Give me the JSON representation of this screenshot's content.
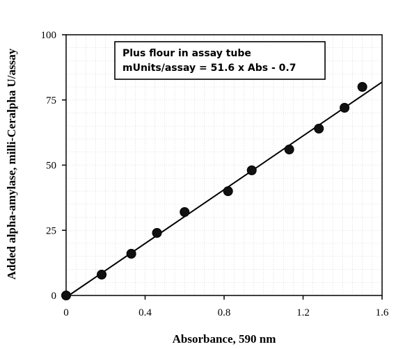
{
  "chart_data": {
    "type": "scatter",
    "xlabel": "Absorbance,   590 nm",
    "ylabel": "Added alpha-amylase, milli-Ceralpha U/assay",
    "xlim": [
      0,
      1.6
    ],
    "ylim": [
      0,
      100
    ],
    "x_ticks": [
      "0",
      "0.4",
      "0.8",
      "1.2",
      "1.6"
    ],
    "y_ticks": [
      "0",
      "25",
      "50",
      "75",
      "100"
    ],
    "x_tick_values": [
      0,
      0.4,
      0.8,
      1.2,
      1.6
    ],
    "y_tick_values": [
      0,
      25,
      50,
      75,
      100
    ],
    "grid": true,
    "annotation": {
      "line1": "Plus flour in assay tube",
      "line2": "mUnits/assay = 51.6 x Abs - 0.7"
    },
    "series": [
      {
        "points": [
          {
            "x": 0.0,
            "y": 0
          },
          {
            "x": 0.18,
            "y": 8
          },
          {
            "x": 0.33,
            "y": 16
          },
          {
            "x": 0.46,
            "y": 24
          },
          {
            "x": 0.6,
            "y": 32
          },
          {
            "x": 0.82,
            "y": 40
          },
          {
            "x": 0.94,
            "y": 48
          },
          {
            "x": 1.13,
            "y": 56
          },
          {
            "x": 1.28,
            "y": 64
          },
          {
            "x": 1.41,
            "y": 72
          },
          {
            "x": 1.5,
            "y": 80
          }
        ]
      }
    ],
    "fit_line": {
      "slope": 51.6,
      "intercept": -0.7
    }
  }
}
